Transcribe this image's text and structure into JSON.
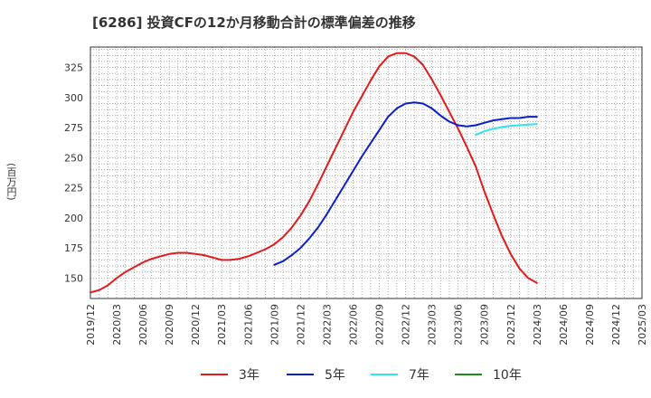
{
  "chart_data": {
    "type": "line",
    "title": "[6286]  投資CFの12か月移動合計の標準偏差の推移",
    "ylabel": "(百万円)",
    "xlabel": "",
    "ylim": [
      133,
      342
    ],
    "yticks": [
      150,
      175,
      200,
      225,
      250,
      275,
      300,
      325
    ],
    "xticks": [
      "2019/12",
      "2020/03",
      "2020/06",
      "2020/09",
      "2020/12",
      "2021/03",
      "2021/06",
      "2021/09",
      "2021/12",
      "2022/03",
      "2022/06",
      "2022/09",
      "2022/12",
      "2023/03",
      "2023/06",
      "2023/09",
      "2023/12",
      "2024/03",
      "2024/06",
      "2024/09",
      "2024/12",
      "2025/03"
    ],
    "grid": true,
    "legend_position": "bottom",
    "series": [
      {
        "name": "3年",
        "color": "#e31a1c",
        "x": [
          "2019/12",
          "2020/01",
          "2020/02",
          "2020/03",
          "2020/04",
          "2020/05",
          "2020/06",
          "2020/07",
          "2020/08",
          "2020/09",
          "2020/10",
          "2020/11",
          "2020/12",
          "2021/01",
          "2021/02",
          "2021/03",
          "2021/04",
          "2021/05",
          "2021/06",
          "2021/07",
          "2021/08",
          "2021/09",
          "2021/10",
          "2021/11",
          "2021/12",
          "2022/01",
          "2022/02",
          "2022/03",
          "2022/04",
          "2022/05",
          "2022/06",
          "2022/07",
          "2022/08",
          "2022/09",
          "2022/10",
          "2022/11",
          "2022/12",
          "2023/01",
          "2023/02",
          "2023/03",
          "2023/04",
          "2023/05",
          "2023/06",
          "2023/07",
          "2023/08",
          "2023/09",
          "2023/10",
          "2023/11",
          "2023/12",
          "2024/01",
          "2024/02",
          "2024/03"
        ],
        "values": [
          138,
          140,
          144,
          150,
          155,
          159,
          163,
          166,
          168,
          170,
          171,
          171,
          170,
          169,
          167,
          165,
          165,
          166,
          168,
          171,
          174,
          178,
          184,
          192,
          202,
          214,
          228,
          243,
          258,
          273,
          288,
          301,
          314,
          326,
          334,
          337,
          337,
          334,
          327,
          315,
          302,
          288,
          274,
          259,
          243,
          222,
          203,
          185,
          170,
          158,
          150,
          146
        ]
      },
      {
        "name": "5年",
        "color": "#0a1fcc",
        "x": [
          "2021/09",
          "2021/10",
          "2021/11",
          "2021/12",
          "2022/01",
          "2022/02",
          "2022/03",
          "2022/04",
          "2022/05",
          "2022/06",
          "2022/07",
          "2022/08",
          "2022/09",
          "2022/10",
          "2022/11",
          "2022/12",
          "2023/01",
          "2023/02",
          "2023/03",
          "2023/04",
          "2023/05",
          "2023/06",
          "2023/07",
          "2023/08",
          "2023/09",
          "2023/10",
          "2023/11",
          "2023/12",
          "2024/01",
          "2024/02",
          "2024/03"
        ],
        "values": [
          161,
          164,
          169,
          175,
          183,
          192,
          203,
          215,
          227,
          239,
          251,
          262,
          273,
          284,
          291,
          295,
          296,
          295,
          291,
          285,
          280,
          277,
          276,
          277,
          279,
          281,
          282,
          283,
          283,
          284,
          284
        ]
      },
      {
        "name": "7年",
        "color": "#33e3f0",
        "x": [
          "2023/08",
          "2023/09",
          "2023/10",
          "2023/11",
          "2023/12",
          "2024/01",
          "2024/02",
          "2024/03"
        ],
        "values": [
          269,
          272,
          274,
          275.5,
          276.5,
          277,
          277.5,
          278
        ]
      },
      {
        "name": "10年",
        "color": "#1e8a1e",
        "x": [],
        "values": []
      }
    ]
  }
}
